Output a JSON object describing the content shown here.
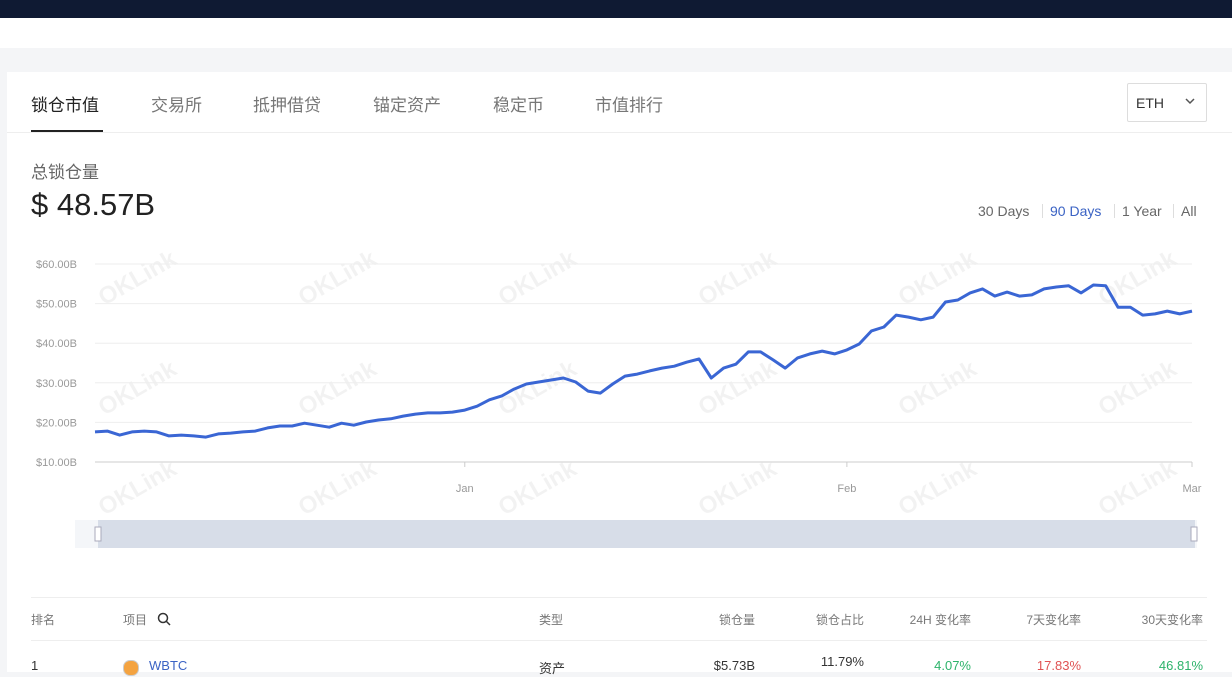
{
  "tabs": [
    "锁仓市值",
    "交易所",
    "抵押借贷",
    "锚定资产",
    "稳定币",
    "市值排行"
  ],
  "active_tab": 0,
  "chain_select": "ETH",
  "tvl": {
    "label": "总锁仓量",
    "value": "$ 48.57B"
  },
  "ranges": [
    "30 Days",
    "90 Days",
    "1 Year",
    "All"
  ],
  "active_range": 1,
  "watermark": "OKLink",
  "chart_data": {
    "type": "line",
    "categories": [
      null,
      null,
      null,
      null,
      null,
      null,
      null,
      null,
      null,
      null,
      null,
      null,
      null,
      null,
      null,
      null,
      null,
      null,
      null,
      null,
      null,
      null,
      null,
      null,
      null,
      null,
      null,
      null,
      null,
      null,
      "Jan",
      null,
      null,
      null,
      null,
      null,
      null,
      null,
      null,
      null,
      null,
      null,
      null,
      null,
      null,
      null,
      null,
      null,
      null,
      null,
      null,
      null,
      null,
      null,
      null,
      null,
      null,
      null,
      null,
      null,
      null,
      "Feb",
      null,
      null,
      null,
      null,
      null,
      null,
      null,
      null,
      null,
      null,
      null,
      null,
      null,
      null,
      null,
      null,
      null,
      null,
      null,
      null,
      null,
      null,
      null,
      null,
      null,
      null,
      null,
      "Mar"
    ],
    "series": [
      {
        "name": "锁仓市值",
        "color": "#3a66d4",
        "values": [
          17.6,
          17.8,
          16.8,
          17.6,
          17.8,
          17.6,
          16.6,
          16.8,
          16.6,
          16.3,
          17.1,
          17.3,
          17.6,
          17.8,
          18.6,
          19.1,
          19.1,
          19.8,
          19.3,
          18.8,
          19.8,
          19.3,
          20.1,
          20.6,
          20.9,
          21.6,
          22.1,
          22.4,
          22.4,
          22.6,
          23.1,
          24.1,
          25.7,
          26.7,
          28.4,
          29.7,
          30.2,
          30.7,
          31.2,
          30.2,
          27.9,
          27.4,
          29.7,
          31.7,
          32.2,
          33.0,
          33.7,
          34.2,
          35.2,
          36.0,
          31.2,
          33.7,
          34.7,
          37.8,
          37.8,
          35.8,
          33.7,
          36.3,
          37.3,
          38.0,
          37.3,
          38.3,
          39.8,
          43.1,
          44.1,
          47.1,
          46.6,
          45.9,
          46.6,
          50.4,
          50.9,
          52.7,
          53.7,
          51.9,
          52.9,
          51.9,
          52.2,
          53.7,
          54.2,
          54.5,
          52.7,
          54.7,
          54.5,
          49.1,
          49.1,
          47.1,
          47.4,
          48.1,
          47.4,
          48.1
        ]
      }
    ],
    "ylim": [
      10,
      60
    ],
    "yticks": [
      {
        "value": 10,
        "label": "$10.00B"
      },
      {
        "value": 20,
        "label": "$20.00B"
      },
      {
        "value": 30,
        "label": "$30.00B"
      },
      {
        "value": 40,
        "label": "$40.00B"
      },
      {
        "value": 50,
        "label": "$50.00B"
      },
      {
        "value": 60,
        "label": "$60.00B"
      }
    ],
    "grid": true
  },
  "table": {
    "columns": [
      "排名",
      "项目",
      "类型",
      "锁仓量",
      "锁仓占比",
      "24H 变化率",
      "7天变化率",
      "30天变化率"
    ],
    "rows": [
      [
        "1",
        "WBTC",
        "资产",
        "$5.73B",
        "11.79%",
        "4.07%",
        "17.83%",
        "46.81%"
      ]
    ]
  }
}
